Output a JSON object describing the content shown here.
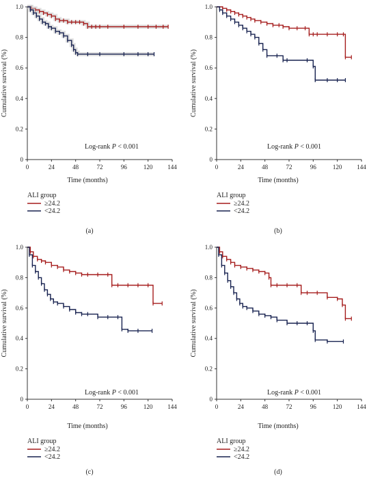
{
  "colors": {
    "high": "#a51c1c",
    "low": "#16214f",
    "axis": "#333333",
    "band": "#c9c9c9"
  },
  "chart_data": [
    {
      "type": "line",
      "panel": "(a)",
      "caption": "(a)",
      "ylabel": "Cumulative survival (%)",
      "xlabel": "Time (months)",
      "xlim": [
        0,
        144
      ],
      "ylim": [
        0,
        1.0
      ],
      "xticks": [
        "0",
        "24",
        "48",
        "72",
        "96",
        "120",
        "144"
      ],
      "yticks": [
        "0",
        "0.2",
        "0.4",
        "0.6",
        "0.8",
        "1.0"
      ],
      "annotation": {
        "prefix": "Log-rank ",
        "stat": "P",
        "suffix": " < 0.001"
      },
      "legend": {
        "title": "ALI group",
        "position": "bottom-left"
      },
      "confidence_band": true,
      "series": [
        {
          "name": "≥24.2",
          "color_key": "high",
          "x": [
            0,
            4,
            8,
            12,
            16,
            20,
            24,
            28,
            32,
            36,
            40,
            44,
            48,
            52,
            56,
            60,
            64,
            68,
            72,
            80,
            96,
            110,
            120,
            128,
            135,
            140
          ],
          "y": [
            1.0,
            0.99,
            0.98,
            0.97,
            0.96,
            0.95,
            0.94,
            0.92,
            0.91,
            0.91,
            0.9,
            0.9,
            0.9,
            0.9,
            0.89,
            0.87,
            0.87,
            0.87,
            0.87,
            0.87,
            0.87,
            0.87,
            0.87,
            0.87,
            0.87,
            0.87
          ]
        },
        {
          "name": "<24.2",
          "color_key": "low",
          "x": [
            0,
            3,
            6,
            9,
            12,
            15,
            18,
            21,
            24,
            28,
            32,
            36,
            40,
            44,
            46,
            48,
            50,
            60,
            72,
            96,
            110,
            120,
            126
          ],
          "y": [
            1.0,
            0.98,
            0.96,
            0.94,
            0.92,
            0.9,
            0.89,
            0.87,
            0.86,
            0.84,
            0.83,
            0.81,
            0.78,
            0.75,
            0.72,
            0.7,
            0.69,
            0.69,
            0.69,
            0.69,
            0.69,
            0.69,
            0.69
          ]
        }
      ]
    },
    {
      "type": "line",
      "panel": "(b)",
      "caption": "(b)",
      "ylabel": "Cumulative survival (%)",
      "xlabel": "Time (months)",
      "xlim": [
        0,
        144
      ],
      "ylim": [
        0,
        1.0
      ],
      "xticks": [
        "0",
        "24",
        "48",
        "72",
        "96",
        "120",
        "144"
      ],
      "yticks": [
        "0",
        "0.2",
        "0.4",
        "0.6",
        "0.8",
        "1.0"
      ],
      "annotation": {
        "prefix": "Log-rank ",
        "stat": "P",
        "suffix": " < 0.001"
      },
      "legend": {
        "title": "ALI group",
        "position": "bottom-left"
      },
      "confidence_band": false,
      "series": [
        {
          "name": "≥24.2",
          "color_key": "high",
          "x": [
            0,
            6,
            10,
            14,
            18,
            22,
            26,
            30,
            34,
            38,
            44,
            50,
            56,
            62,
            66,
            72,
            80,
            88,
            92,
            96,
            100,
            110,
            120,
            126,
            128,
            134
          ],
          "y": [
            1.0,
            0.99,
            0.98,
            0.97,
            0.96,
            0.95,
            0.94,
            0.93,
            0.92,
            0.91,
            0.9,
            0.89,
            0.88,
            0.88,
            0.87,
            0.86,
            0.86,
            0.86,
            0.82,
            0.82,
            0.82,
            0.82,
            0.82,
            0.82,
            0.67,
            0.67
          ]
        },
        {
          "name": "<24.2",
          "color_key": "low",
          "x": [
            0,
            3,
            6,
            10,
            14,
            18,
            22,
            26,
            30,
            34,
            38,
            42,
            46,
            50,
            60,
            66,
            70,
            90,
            96,
            98,
            110,
            120,
            128
          ],
          "y": [
            1.0,
            0.98,
            0.96,
            0.94,
            0.92,
            0.9,
            0.88,
            0.86,
            0.84,
            0.82,
            0.8,
            0.76,
            0.72,
            0.68,
            0.68,
            0.65,
            0.65,
            0.65,
            0.61,
            0.52,
            0.52,
            0.52,
            0.52
          ]
        }
      ]
    },
    {
      "type": "line",
      "panel": "(c)",
      "caption": "(c)",
      "ylabel": "Cumulative survival (%)",
      "xlabel": "Time (months)",
      "xlim": [
        0,
        144
      ],
      "ylim": [
        0,
        1.0
      ],
      "xticks": [
        "0",
        "24",
        "48",
        "72",
        "96",
        "120",
        "144"
      ],
      "yticks": [
        "0",
        "0.2",
        "0.4",
        "0.6",
        "0.8",
        "1.0"
      ],
      "annotation": {
        "prefix": "Log-rank ",
        "stat": "P",
        "suffix": " < 0.001"
      },
      "legend": {
        "title": "ALI group",
        "position": "bottom-left"
      },
      "confidence_band": false,
      "series": [
        {
          "name": "≥24.2",
          "color_key": "high",
          "x": [
            0,
            3,
            6,
            10,
            14,
            18,
            24,
            30,
            36,
            42,
            48,
            54,
            60,
            70,
            80,
            84,
            90,
            100,
            110,
            120,
            125,
            134
          ],
          "y": [
            1.0,
            0.97,
            0.94,
            0.92,
            0.91,
            0.9,
            0.88,
            0.87,
            0.85,
            0.84,
            0.83,
            0.82,
            0.82,
            0.82,
            0.82,
            0.75,
            0.75,
            0.75,
            0.75,
            0.75,
            0.63,
            0.63
          ]
        },
        {
          "name": "<24.2",
          "color_key": "low",
          "x": [
            0,
            2,
            5,
            8,
            11,
            14,
            17,
            20,
            23,
            26,
            30,
            36,
            42,
            48,
            54,
            60,
            70,
            80,
            90,
            94,
            100,
            110,
            124
          ],
          "y": [
            1.0,
            0.95,
            0.88,
            0.84,
            0.8,
            0.76,
            0.72,
            0.69,
            0.66,
            0.64,
            0.63,
            0.61,
            0.59,
            0.57,
            0.56,
            0.56,
            0.54,
            0.54,
            0.54,
            0.46,
            0.45,
            0.45,
            0.45
          ]
        }
      ]
    },
    {
      "type": "line",
      "panel": "(d)",
      "caption": "(d)",
      "ylabel": "Cumulative survival (%)",
      "xlabel": "Time (months)",
      "xlim": [
        0,
        144
      ],
      "ylim": [
        0,
        1.0
      ],
      "xticks": [
        "0",
        "24",
        "48",
        "72",
        "96",
        "120",
        "144"
      ],
      "yticks": [
        "0",
        "0.2",
        "0.4",
        "0.6",
        "0.8",
        "1.0"
      ],
      "annotation": {
        "prefix": "Log-rank ",
        "stat": "P",
        "suffix": " < 0.001"
      },
      "legend": {
        "title": "ALI group",
        "position": "bottom-left"
      },
      "confidence_band": false,
      "series": [
        {
          "name": "≥24.2",
          "color_key": "high",
          "x": [
            0,
            3,
            6,
            10,
            14,
            18,
            24,
            30,
            36,
            42,
            48,
            52,
            54,
            60,
            70,
            80,
            84,
            90,
            100,
            110,
            120,
            125,
            128,
            134
          ],
          "y": [
            1.0,
            0.97,
            0.94,
            0.92,
            0.9,
            0.88,
            0.87,
            0.86,
            0.85,
            0.84,
            0.83,
            0.8,
            0.75,
            0.75,
            0.75,
            0.75,
            0.7,
            0.7,
            0.7,
            0.67,
            0.66,
            0.62,
            0.53,
            0.53
          ]
        },
        {
          "name": "<24.2",
          "color_key": "low",
          "x": [
            0,
            2,
            5,
            8,
            11,
            14,
            17,
            20,
            23,
            26,
            30,
            36,
            42,
            48,
            54,
            60,
            70,
            80,
            90,
            96,
            98,
            110,
            126
          ],
          "y": [
            1.0,
            0.95,
            0.88,
            0.83,
            0.78,
            0.74,
            0.7,
            0.66,
            0.63,
            0.61,
            0.6,
            0.58,
            0.56,
            0.55,
            0.54,
            0.52,
            0.5,
            0.5,
            0.5,
            0.45,
            0.39,
            0.38,
            0.38
          ]
        }
      ]
    }
  ]
}
